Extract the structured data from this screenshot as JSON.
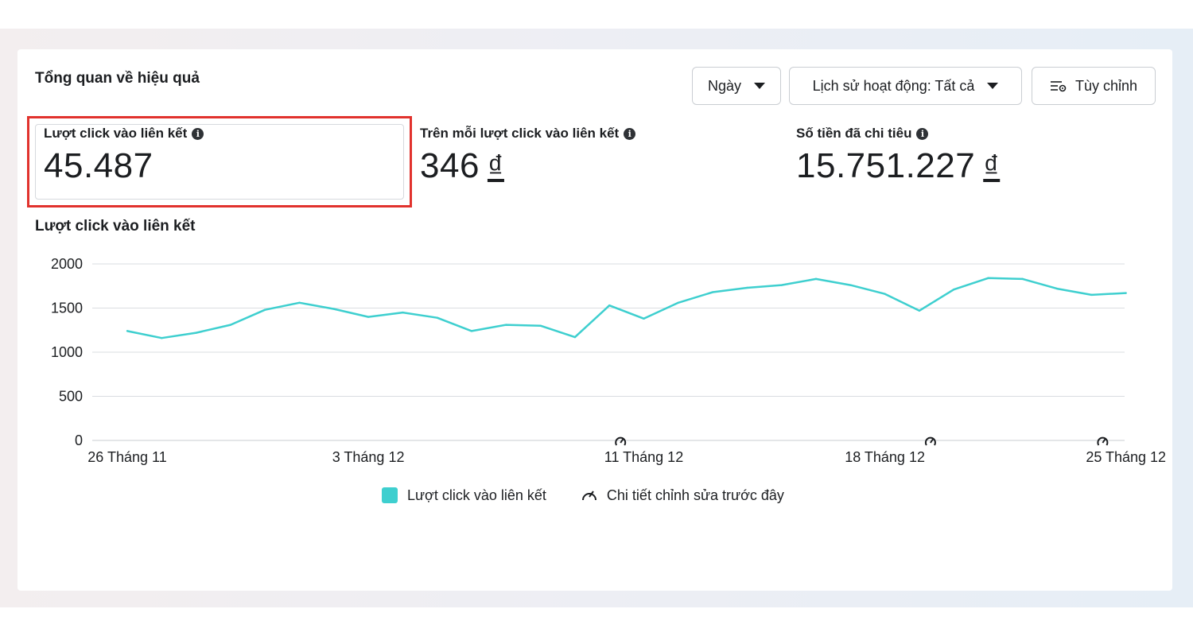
{
  "header": {
    "title": "Tổng quan về hiệu quả",
    "buttons": {
      "period": "Ngày",
      "activity": "Lịch sử hoạt động: Tất cả",
      "customize": "Tùy chỉnh"
    }
  },
  "metrics": [
    {
      "label": "Lượt click vào liên kết",
      "value": "45.487"
    },
    {
      "label": "Trên mỗi lượt click vào liên kết",
      "value": "346",
      "currency": "₫"
    },
    {
      "label": "Số tiền đã chi tiêu",
      "value": "15.751.227",
      "currency": "₫"
    }
  ],
  "icons": {
    "info": "info-icon",
    "caret": "caret-down-icon",
    "customize": "sliders-icon",
    "edit_history": "edit-gauge-icon"
  },
  "chart_data": {
    "type": "line",
    "title": "Lượt click vào liên kết",
    "x": [
      "26 Tháng 11",
      "27 Tháng 11",
      "28 Tháng 11",
      "29 Tháng 11",
      "30 Tháng 11",
      "1 Tháng 12",
      "2 Tháng 12",
      "3 Tháng 12",
      "4 Tháng 12",
      "5 Tháng 12",
      "6 Tháng 12",
      "7 Tháng 12",
      "8 Tháng 12",
      "9 Tháng 12",
      "10 Tháng 12",
      "11 Tháng 12",
      "12 Tháng 12",
      "13 Tháng 12",
      "14 Tháng 12",
      "15 Tháng 12",
      "16 Tháng 12",
      "17 Tháng 12",
      "18 Tháng 12",
      "19 Tháng 12",
      "20 Tháng 12",
      "21 Tháng 12",
      "22 Tháng 12",
      "23 Tháng 12",
      "24 Tháng 12",
      "25 Tháng 12"
    ],
    "x_tick_labels": [
      "26 Tháng 11",
      "3 Tháng 12",
      "11 Tháng 12",
      "18 Tháng 12",
      "25 Tháng 12"
    ],
    "series": [
      {
        "name": "Lượt click vào liên kết",
        "values": [
          1240,
          1160,
          1220,
          1310,
          1480,
          1560,
          1490,
          1400,
          1450,
          1390,
          1240,
          1310,
          1300,
          1170,
          1530,
          1380,
          1560,
          1680,
          1730,
          1760,
          1830,
          1760,
          1660,
          1470,
          1710,
          1840,
          1830,
          1720,
          1650,
          1670
        ]
      }
    ],
    "ylim": [
      0,
      2000
    ],
    "yticks": [
      0,
      500,
      1000,
      1500,
      2000
    ],
    "edit_markers": [
      "10 Tháng 12",
      "19 Tháng 12",
      "24 Tháng 12"
    ],
    "legend": [
      {
        "label": "Lượt click vào liên kết",
        "color": "#3ecfcf"
      },
      {
        "label": "Chi tiết chỉnh sửa trước đây",
        "icon": "edit-gauge-icon"
      }
    ],
    "grid": true
  },
  "colors": {
    "line": "#3ecfcf",
    "highlight": "#e1322d",
    "grid": "#dadde1"
  }
}
